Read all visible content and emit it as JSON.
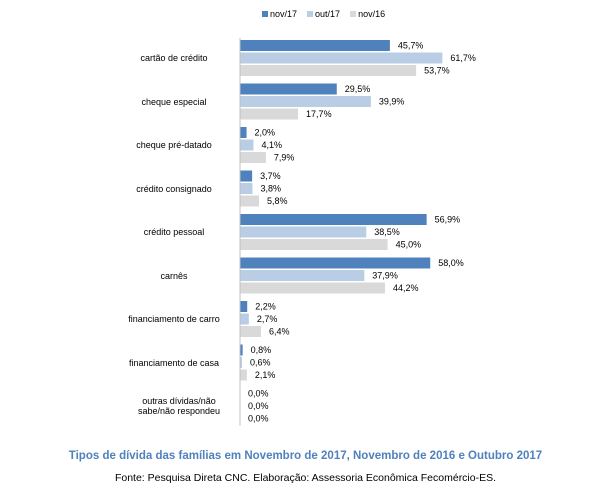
{
  "chart_data": {
    "type": "hbar",
    "title": "Tipos de dívida das famílias em Novembro de 2017, Novembro de 2016 e Outubro 2017",
    "source": "Fonte: Pesquisa Direta CNC.  Elaboração: Assessoria Econômica Fecomércio-ES.",
    "categories": [
      "cartão de crédito",
      "cheque especial",
      "cheque pré-datado",
      "crédito consignado",
      "crédito pessoal",
      "carnês",
      "financiamento de carro",
      "financiamento de casa",
      "outras dívidas/não sabe/não respondeu"
    ],
    "series": [
      {
        "name": "nov/17",
        "color": "#4f81bd",
        "values": [
          45.7,
          29.5,
          2.0,
          3.7,
          56.9,
          58.0,
          2.2,
          0.8,
          0.0
        ],
        "value_labels": [
          "45,7%",
          "29,5%",
          "2,0%",
          "3,7%",
          "56,9%",
          "58,0%",
          "2,2%",
          "0,8%",
          "0,0%"
        ]
      },
      {
        "name": "out/17",
        "color": "#b9cde5",
        "values": [
          61.7,
          39.9,
          4.1,
          3.8,
          38.5,
          37.9,
          2.7,
          0.6,
          0.0
        ],
        "value_labels": [
          "61,7%",
          "39,9%",
          "4,1%",
          "3,8%",
          "38,5%",
          "37,9%",
          "2,7%",
          "0,6%",
          "0,0%"
        ]
      },
      {
        "name": "nov/16",
        "color": "#d9d9d9",
        "values": [
          53.7,
          17.7,
          7.9,
          5.8,
          45.0,
          44.2,
          6.4,
          2.1,
          0.0
        ],
        "value_labels": [
          "53,7%",
          "17,7%",
          "7,9%",
          "5,8%",
          "45,0%",
          "44,2%",
          "6,4%",
          "2,1%",
          "0,0%"
        ]
      }
    ]
  }
}
